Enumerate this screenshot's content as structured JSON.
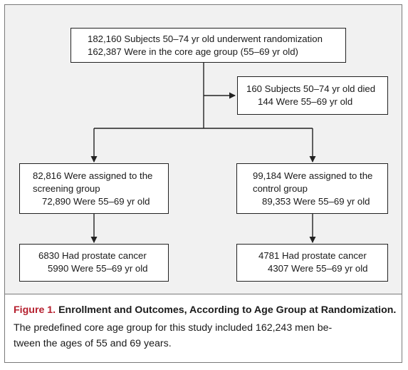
{
  "diagram": {
    "randomization": {
      "line1": "182,160 Subjects 50–74 yr old underwent randomization",
      "line2": "162,387 Were in the core age group (55–69 yr old)"
    },
    "died": {
      "line1": "160 Subjects 50–74 yr old died",
      "line2": "144 Were 55–69 yr old"
    },
    "screening_group": {
      "line1": "82,816 Were assigned to the",
      "line2": "screening group",
      "line3": "72,890 Were 55–69 yr old"
    },
    "control_group": {
      "line1": "99,184 Were assigned to the",
      "line2": "control group",
      "line3": "89,353 Were 55–69 yr old"
    },
    "screening_cancer": {
      "line1": "6830 Had prostate cancer",
      "line2": "5990 Were 55–69 yr old"
    },
    "control_cancer": {
      "line1": "4781 Had prostate cancer",
      "line2": "4307 Were 55–69 yr old"
    }
  },
  "caption": {
    "label": "Figure 1.",
    "title": "Enrollment and Outcomes, According to Age Group at Randomization.",
    "body_line1": "The predefined core age group for this study included 162,243 men be-",
    "body_line2": "tween the ages of 55 and 69 years."
  },
  "colors": {
    "panel_background": "#f1f1f1",
    "figure_label": "#b51f2e",
    "lines": "#222222"
  }
}
